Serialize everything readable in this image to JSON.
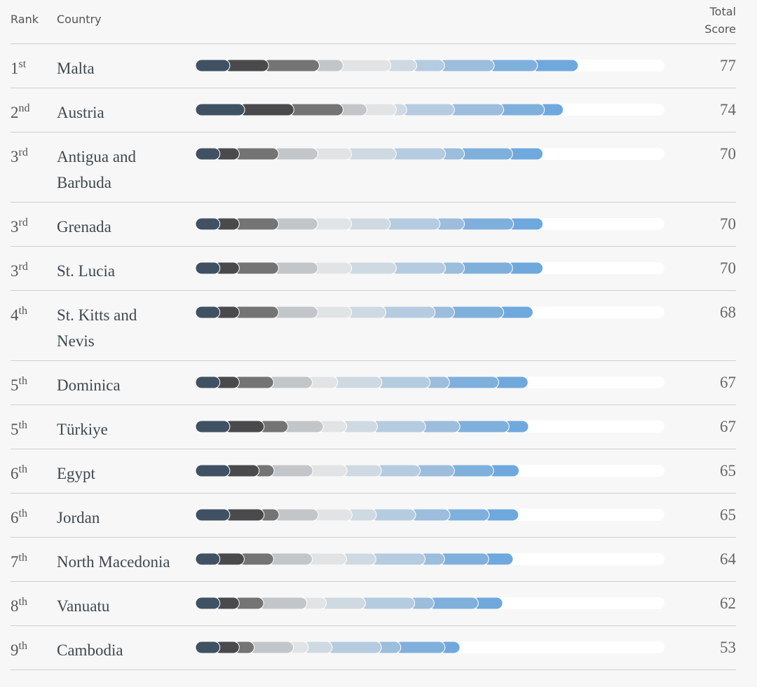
{
  "header": {
    "rank": "Rank",
    "country": "Country",
    "score": "Total Score"
  },
  "segment_colors": [
    "#3f5163",
    "#4a4a4c",
    "#747474",
    "#c3c6c9",
    "#e2e3e4",
    "#cfd9e2",
    "#b5cbe0",
    "#9cbddb",
    "#7fb0dc",
    "#6fa8dc"
  ],
  "rows": [
    {
      "rank": "1",
      "suffix": "st",
      "country": "Malta",
      "score": 77,
      "segments": [
        6.9,
        7.8,
        10.2,
        4.8,
        9.6,
        5.2,
        5.6,
        10.0,
        8.7,
        8.2
      ]
    },
    {
      "rank": "2",
      "suffix": "nd",
      "country": "Austria",
      "score": 74,
      "segments": [
        9.9,
        9.9,
        9.9,
        4.8,
        5.9,
        2.1,
        9.6,
        9.9,
        8.2,
        3.8
      ]
    },
    {
      "rank": "3",
      "suffix": "rd",
      "country": "Antigua and Barbuda",
      "score": 70,
      "segments": [
        4.9,
        3.9,
        7.9,
        7.9,
        6.8,
        9.0,
        9.9,
        3.8,
        9.7,
        6.1
      ]
    },
    {
      "rank": "3",
      "suffix": "rd",
      "country": "Grenada",
      "score": 70,
      "segments": [
        4.9,
        3.9,
        7.9,
        7.9,
        6.8,
        7.8,
        10.0,
        4.9,
        9.9,
        5.9
      ]
    },
    {
      "rank": "3",
      "suffix": "rd",
      "country": "St. Lucia",
      "score": 70,
      "segments": [
        4.9,
        3.9,
        7.9,
        7.9,
        6.8,
        9.0,
        9.9,
        3.8,
        9.7,
        6.1
      ]
    },
    {
      "rank": "4",
      "suffix": "th",
      "country": "St. Kitts and Nevis",
      "score": 68,
      "segments": [
        4.9,
        3.9,
        7.9,
        7.9,
        6.8,
        6.9,
        9.9,
        3.9,
        9.9,
        5.9
      ]
    },
    {
      "rank": "5",
      "suffix": "th",
      "country": "Dominica",
      "score": 67,
      "segments": [
        4.9,
        3.9,
        6.9,
        7.8,
        5.1,
        8.9,
        9.7,
        3.9,
        9.9,
        5.9
      ]
    },
    {
      "rank": "5",
      "suffix": "th",
      "country": "Türkiye",
      "score": 67,
      "segments": [
        6.9,
        6.9,
        4.8,
        7.1,
        4.7,
        6.2,
        9.7,
        6.9,
        9.9,
        3.9
      ]
    },
    {
      "rank": "6",
      "suffix": "th",
      "country": "Egypt",
      "score": 65,
      "segments": [
        6.9,
        5.9,
        3.0,
        7.8,
        6.9,
        6.9,
        7.8,
        6.9,
        7.9,
        5.1
      ]
    },
    {
      "rank": "6",
      "suffix": "th",
      "country": "Jordan",
      "score": 65,
      "segments": [
        6.9,
        6.9,
        3.0,
        7.9,
        6.8,
        4.9,
        7.9,
        6.9,
        7.9,
        5.9
      ]
    },
    {
      "rank": "7",
      "suffix": "th",
      "country": "North Macedonia",
      "score": 64,
      "segments": [
        4.9,
        4.9,
        5.9,
        7.8,
        6.9,
        5.9,
        9.9,
        3.9,
        8.9,
        4.9
      ]
    },
    {
      "rank": "8",
      "suffix": "th",
      "country": "Vanuatu",
      "score": 62,
      "segments": [
        4.9,
        3.9,
        4.9,
        8.7,
        3.9,
        7.9,
        9.9,
        3.9,
        8.9,
        4.9
      ]
    },
    {
      "rank": "9",
      "suffix": "th",
      "country": "Cambodia",
      "score": 53,
      "segments": [
        4.9,
        3.9,
        3.0,
        7.9,
        3.0,
        4.8,
        9.9,
        3.9,
        8.9,
        3.0
      ]
    }
  ]
}
